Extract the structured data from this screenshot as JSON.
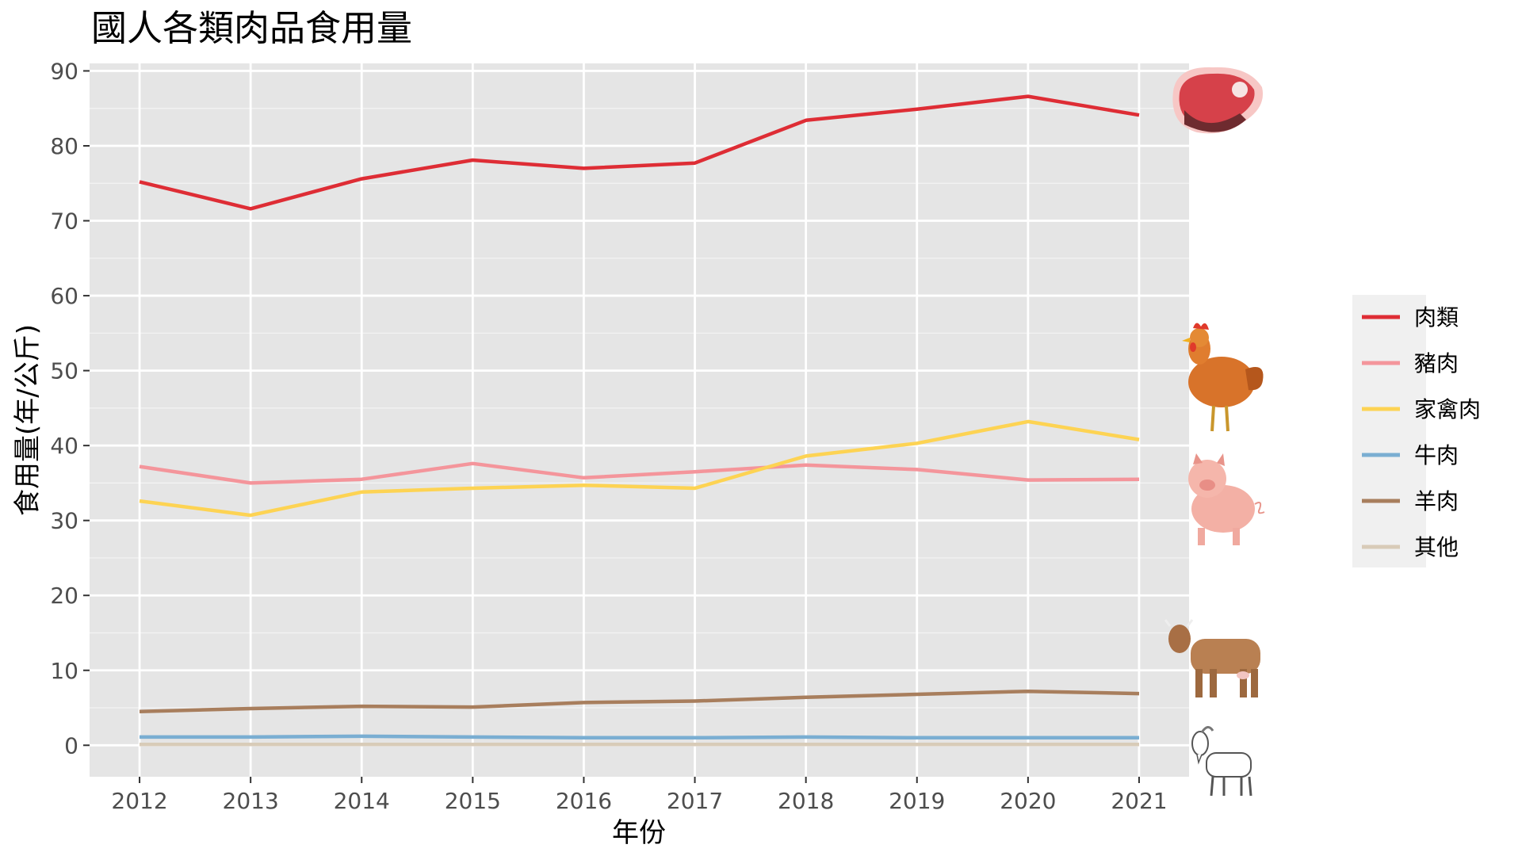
{
  "chart_data": {
    "type": "line",
    "title": "國人各類肉品食用量",
    "xlabel": "年份",
    "ylabel": "食用量(年/公斤)",
    "x": [
      2012,
      2013,
      2014,
      2015,
      2016,
      2017,
      2018,
      2019,
      2020,
      2021
    ],
    "xlim": [
      2011.55,
      2021.45
    ],
    "ylim": [
      -4.2,
      91
    ],
    "yticks": [
      0,
      10,
      20,
      30,
      40,
      50,
      60,
      70,
      80,
      90
    ],
    "grid": true,
    "legend_position": "right",
    "series": [
      {
        "name": "肉類",
        "color": "#de2d35",
        "icon": "steak-icon",
        "values": [
          75.2,
          71.6,
          75.6,
          78.1,
          77.0,
          77.7,
          83.4,
          84.9,
          86.6,
          84.1
        ]
      },
      {
        "name": "豬肉",
        "color": "#f4959b",
        "icon": "pig-icon",
        "values": [
          37.2,
          35.0,
          35.5,
          37.6,
          35.7,
          36.5,
          37.4,
          36.8,
          35.4,
          35.5
        ]
      },
      {
        "name": "家禽肉",
        "color": "#fdd353",
        "icon": "chicken-icon",
        "values": [
          32.6,
          30.7,
          33.8,
          34.3,
          34.7,
          34.3,
          38.6,
          40.3,
          43.2,
          40.8
        ]
      },
      {
        "name": "牛肉",
        "color": "#7aaed2",
        "icon": "cow-icon",
        "values": [
          1.1,
          1.1,
          1.2,
          1.1,
          1.0,
          1.0,
          1.1,
          1.0,
          1.0,
          1.0
        ]
      },
      {
        "name": "羊肉",
        "color": "#a87e5d",
        "icon": "goat-icon",
        "values": [
          4.5,
          4.9,
          5.2,
          5.1,
          5.7,
          5.9,
          6.4,
          6.8,
          7.2,
          6.9
        ]
      },
      {
        "name": "其他",
        "color": "#d8cbb8",
        "icon": null,
        "values": [
          0.1,
          0.1,
          0.1,
          0.1,
          0.1,
          0.1,
          0.1,
          0.1,
          0.1,
          0.1
        ]
      }
    ]
  },
  "colors": {
    "panel_background": "#e5e5e5",
    "grid": "#ffffff",
    "tick_text": "#4d4d4d",
    "legend_background": "#f0f0f0"
  }
}
